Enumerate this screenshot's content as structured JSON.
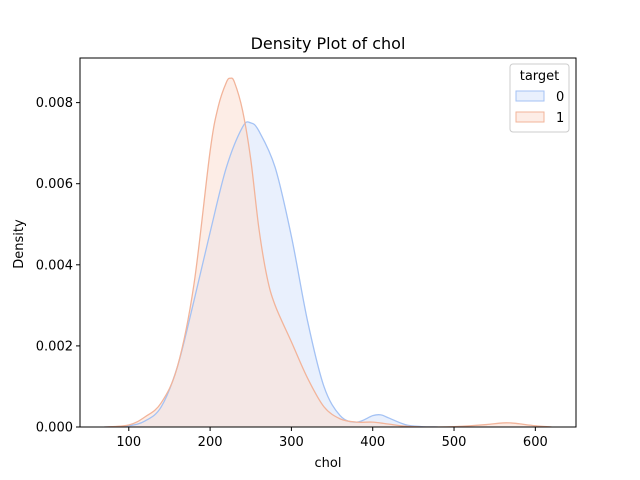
{
  "chart_data": {
    "type": "area",
    "title": "Density Plot of chol",
    "xlabel": "chol",
    "ylabel": "Density",
    "xlim": [
      40,
      650
    ],
    "ylim": [
      0,
      0.0091
    ],
    "x_ticks": [
      100,
      200,
      300,
      400,
      500,
      600
    ],
    "y_ticks": [
      0.0,
      0.002,
      0.004,
      0.006,
      0.008
    ],
    "y_tick_labels": [
      "0.000",
      "0.002",
      "0.004",
      "0.006",
      "0.008"
    ],
    "grid": false,
    "legend": {
      "title": "target",
      "placement": "top-right"
    },
    "series": [
      {
        "name": "0",
        "line_color": "#a4c2f4",
        "fill_color": "#dbe6fb",
        "x": [
          70,
          100,
          120,
          140,
          160,
          180,
          200,
          220,
          240,
          250,
          260,
          280,
          300,
          320,
          340,
          360,
          380,
          400,
          410,
          420,
          440,
          460,
          480
        ],
        "y": [
          0.0,
          3e-05,
          0.00015,
          0.0005,
          0.0015,
          0.0031,
          0.0048,
          0.0064,
          0.0074,
          0.0075,
          0.0073,
          0.0064,
          0.0047,
          0.0026,
          0.001,
          0.00028,
          0.00012,
          0.00028,
          0.0003,
          0.00022,
          6e-05,
          1e-05,
          0.0
        ]
      },
      {
        "name": "1",
        "line_color": "#f2b49a",
        "fill_color": "#fbe1d6",
        "x": [
          70,
          100,
          120,
          140,
          160,
          180,
          200,
          210,
          220,
          225,
          230,
          240,
          250,
          260,
          270,
          280,
          300,
          320,
          340,
          360,
          380,
          400,
          420,
          440,
          460,
          480,
          500,
          520,
          540,
          560,
          570,
          580,
          600,
          620
        ],
        "y": [
          0.0,
          5e-05,
          0.00025,
          0.0006,
          0.0015,
          0.0035,
          0.0068,
          0.0079,
          0.0085,
          0.0086,
          0.0085,
          0.0078,
          0.0066,
          0.0049,
          0.0037,
          0.003,
          0.0021,
          0.0012,
          0.0005,
          0.0002,
          0.00012,
          0.00012,
          7e-05,
          2e-05,
          0.0,
          0.0,
          1e-05,
          3e-05,
          6e-05,
          0.0001,
          0.0001,
          8e-05,
          3e-05,
          0.0
        ]
      }
    ]
  }
}
